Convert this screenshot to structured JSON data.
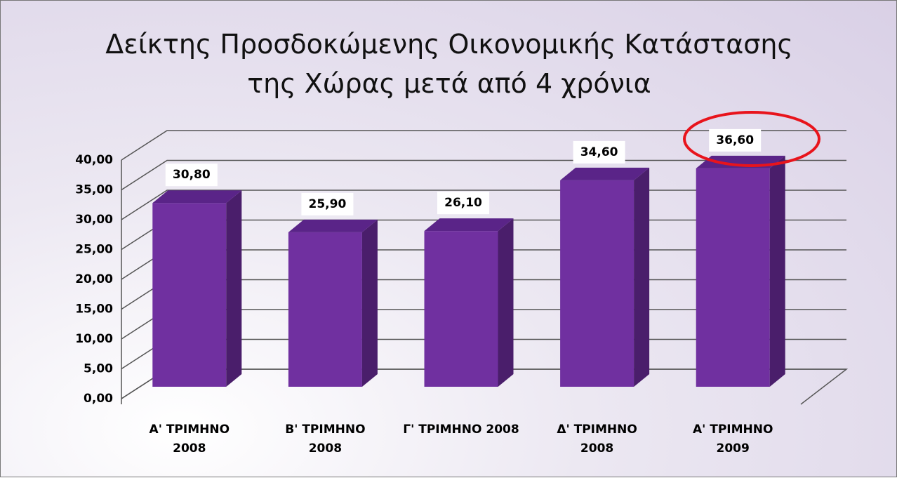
{
  "chart_data": {
    "type": "bar",
    "title": "Δείκτης Προσδοκώμενης Οικονομικής Κατάστασης\nτης Χώρας μετά από 4 χρόνια",
    "categories": [
      "Α' ΤΡΙΜΗΝΟ\n2008",
      "Β' ΤΡΙΜΗΝΟ\n2008",
      "Γ' ΤΡΙΜΗΝΟ 2008",
      "Δ' ΤΡΙΜΗΝΟ\n2008",
      "Α' ΤΡΙΜΗΝΟ\n2009"
    ],
    "values": [
      30.8,
      25.9,
      26.1,
      34.6,
      36.6
    ],
    "value_labels": [
      "30,80",
      "25,90",
      "26,10",
      "34,60",
      "36,60"
    ],
    "color": "#7030a0",
    "ylim": [
      0,
      40
    ],
    "yticks": [
      {
        "value": 0,
        "label": "0,00"
      },
      {
        "value": 5,
        "label": "5,00"
      },
      {
        "value": 10,
        "label": "10,00"
      },
      {
        "value": 15,
        "label": "15,00"
      },
      {
        "value": 20,
        "label": "20,00"
      },
      {
        "value": 25,
        "label": "25,00"
      },
      {
        "value": 30,
        "label": "30,00"
      },
      {
        "value": 35,
        "label": "35,00"
      },
      {
        "value": 40,
        "label": "40,00"
      }
    ],
    "grid": true
  }
}
